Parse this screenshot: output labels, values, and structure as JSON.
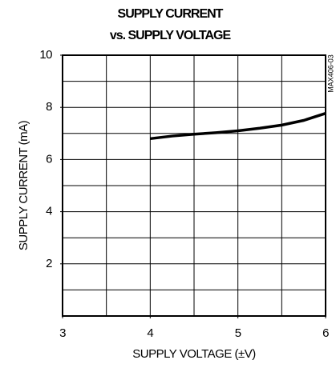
{
  "chart_data": {
    "type": "line",
    "title": "SUPPLY CURRENT",
    "subtitle": "vs. SUPPLY VOLTAGE",
    "xlabel": "SUPPLY VOLTAGE (±V)",
    "ylabel": "SUPPLY CURRENT (mA)",
    "annotation": "MAX406-03",
    "x": [
      4,
      4.25,
      4.5,
      4.75,
      5,
      5.25,
      5.5,
      5.75,
      6
    ],
    "values": [
      6.8,
      6.9,
      6.97,
      7.03,
      7.1,
      7.2,
      7.32,
      7.5,
      7.77
    ],
    "color": "#000000",
    "xlim": [
      3,
      6
    ],
    "xticks": [
      3,
      4,
      5,
      6
    ],
    "ylim": [
      0,
      10
    ],
    "yticks": [
      2,
      4,
      6,
      8,
      10
    ],
    "x_grid": [
      3.5,
      4,
      4.5,
      5,
      5.5
    ],
    "y_grid": [
      1,
      2,
      3,
      4,
      5,
      6,
      7,
      8,
      9
    ],
    "grid": true
  }
}
